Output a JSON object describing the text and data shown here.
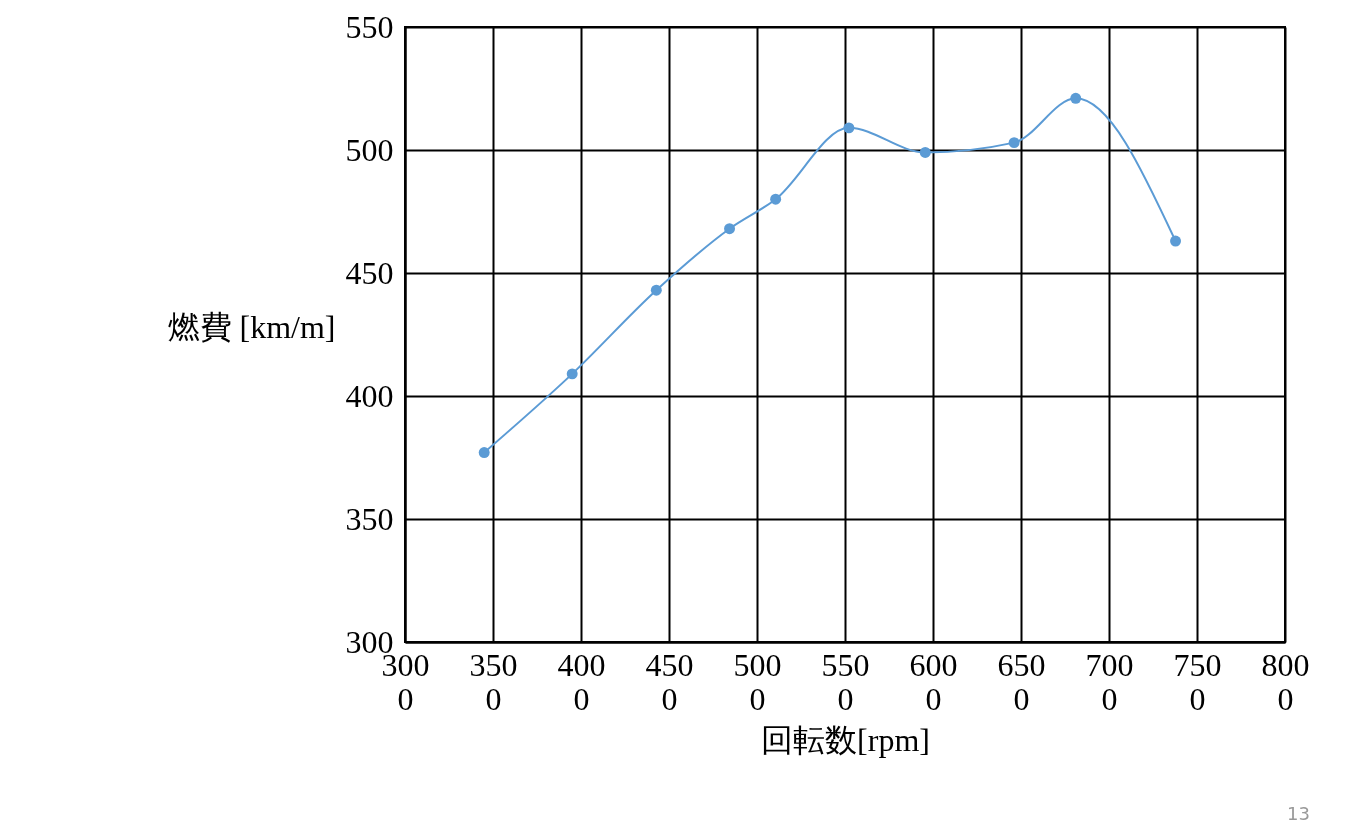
{
  "chart_data": {
    "type": "line",
    "xlabel": "回転数[rpm]",
    "ylabel": "燃費 [km/m]",
    "x": [
      3450,
      3950,
      4428,
      4844,
      5106,
      5522,
      5956,
      6461,
      6811,
      7378
    ],
    "series": [
      {
        "color": "#5b9bd5",
        "values": [
          377,
          409,
          443,
          468,
          480,
          509,
          499,
          503,
          521,
          463
        ]
      }
    ],
    "xlim": [
      3000,
      8000
    ],
    "xticks": [
      3000,
      3500,
      4000,
      4500,
      5000,
      5500,
      6000,
      6500,
      7000,
      7500,
      8000
    ],
    "ylim": [
      300,
      550
    ],
    "yticks": [
      300,
      350,
      400,
      450,
      500,
      550
    ],
    "grid": true,
    "marker": "circle",
    "annotations": [
      "13"
    ]
  }
}
